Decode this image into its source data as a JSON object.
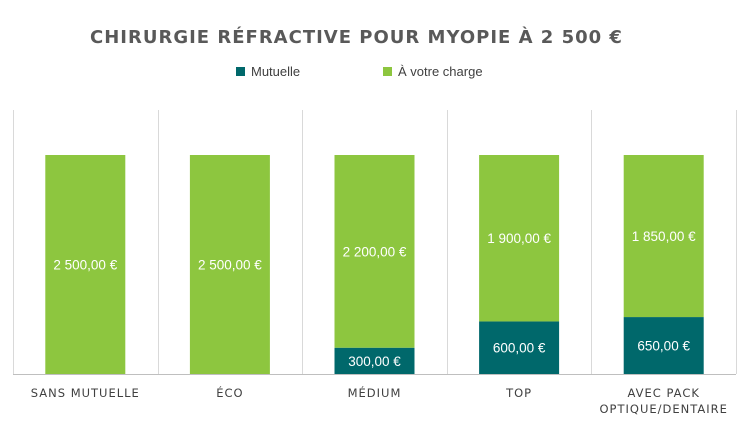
{
  "chart_data": {
    "type": "bar",
    "stacked": true,
    "title": "CHIRURGIE RÉFRACTIVE POUR MYOPIE À 2 500 €",
    "categories": [
      "SANS MUTUELLE",
      "ÉCO",
      "MÉDIUM",
      "TOP",
      "AVEC PACK OPTIQUE/DENTAIRE"
    ],
    "series": [
      {
        "name": "Mutuelle",
        "color": "#00686B",
        "values": [
          0,
          0,
          300,
          600,
          650
        ],
        "labels": [
          "",
          "",
          "300,00 €",
          "600,00 €",
          "650,00 €"
        ]
      },
      {
        "name": "À votre charge",
        "color": "#8DC63F",
        "values": [
          2500,
          2500,
          2200,
          1900,
          1850
        ],
        "labels": [
          "2 500,00 €",
          "2 500,00 €",
          "2 200,00 €",
          "1 900,00 €",
          "1 850,00 €"
        ]
      }
    ],
    "xlabel": "",
    "ylabel": "",
    "ylim": [
      0,
      2500
    ],
    "legend_position": "top",
    "grid": "vertical separators"
  }
}
